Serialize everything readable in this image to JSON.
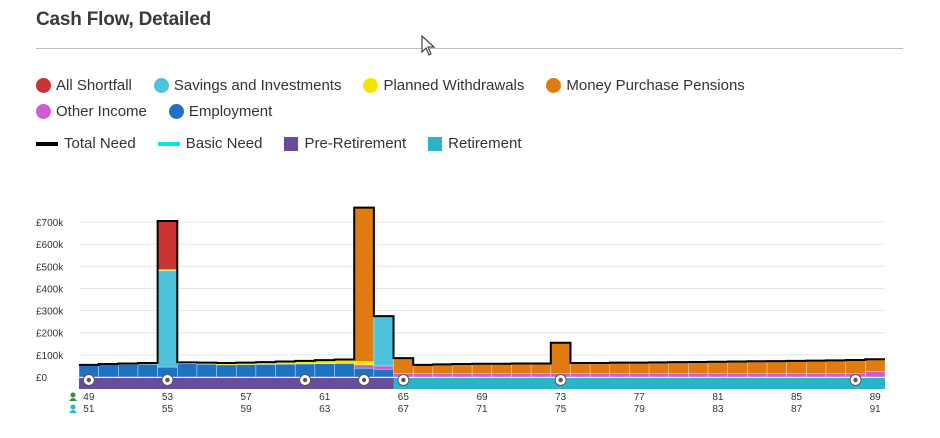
{
  "header": {
    "title": "Cash Flow, Detailed"
  },
  "legend": {
    "row1": [
      {
        "label": "All Shortfall",
        "color": "#cc3333"
      },
      {
        "label": "Savings and Investments",
        "color": "#4ec3db"
      },
      {
        "label": "Planned Withdrawals",
        "color": "#f2e600"
      },
      {
        "label": "Money Purchase Pensions",
        "color": "#e07b12"
      }
    ],
    "row2": [
      {
        "label": "Other Income",
        "color": "#cc5fcc"
      },
      {
        "label": "Employment",
        "color": "#1f72c2"
      }
    ],
    "row3": [
      {
        "label": "Total Need",
        "color": "#000000",
        "kind": "line"
      },
      {
        "label": "Basic Need",
        "color": "#00e5f0",
        "kind": "line"
      },
      {
        "label": "Pre-Retirement",
        "color": "#6a4c9c",
        "kind": "square"
      },
      {
        "label": "Retirement",
        "color": "#2ab4c8",
        "kind": "square"
      }
    ]
  },
  "chart_data": {
    "type": "bar",
    "stacked": true,
    "ylim": [
      0,
      750000
    ],
    "yticks": [
      {
        "value": 0,
        "label": "£0"
      },
      {
        "value": 100000,
        "label": "£100k"
      },
      {
        "value": 200000,
        "label": "£200k"
      },
      {
        "value": 300000,
        "label": "£300k"
      },
      {
        "value": 400000,
        "label": "£400k"
      },
      {
        "value": 500000,
        "label": "£500k"
      },
      {
        "value": 600000,
        "label": "£600k"
      },
      {
        "value": 700000,
        "label": "£700k"
      }
    ],
    "grid": true,
    "age_person1": [
      49,
      50,
      51,
      52,
      53,
      54,
      55,
      56,
      57,
      58,
      59,
      60,
      61,
      62,
      63,
      64,
      65,
      66,
      67,
      68,
      69,
      70,
      71,
      72,
      73,
      74,
      75,
      76,
      77,
      78,
      79,
      80,
      81,
      82,
      83,
      84,
      85,
      86,
      87,
      88,
      89
    ],
    "age_person2": [
      51,
      52,
      53,
      54,
      55,
      56,
      57,
      58,
      59,
      60,
      61,
      62,
      63,
      64,
      65,
      66,
      67,
      68,
      69,
      70,
      71,
      72,
      73,
      74,
      75,
      76,
      77,
      78,
      79,
      80,
      81,
      82,
      83,
      84,
      85,
      86,
      87,
      88,
      89,
      90,
      91
    ],
    "tick_labels_person1": [
      "49",
      "53",
      "57",
      "61",
      "65",
      "69",
      "73",
      "77",
      "81",
      "85",
      "89"
    ],
    "tick_labels_person2": [
      "51",
      "55",
      "59",
      "63",
      "67",
      "71",
      "75",
      "79",
      "83",
      "87",
      "91"
    ],
    "series": [
      {
        "name": "Employment",
        "color": "#1f72c2",
        "values": [
          55000,
          56000,
          57000,
          58000,
          45000,
          60000,
          58000,
          55000,
          56000,
          57000,
          58000,
          59000,
          60000,
          61000,
          40000,
          35000,
          0,
          0,
          0,
          0,
          0,
          0,
          0,
          0,
          0,
          0,
          0,
          0,
          0,
          0,
          0,
          0,
          0,
          0,
          0,
          0,
          0,
          0,
          0,
          0,
          0
        ]
      },
      {
        "name": "Other Income",
        "color": "#cc5fcc",
        "values": [
          0,
          0,
          0,
          0,
          0,
          0,
          0,
          0,
          0,
          0,
          0,
          0,
          0,
          0,
          15000,
          15000,
          15000,
          15000,
          15000,
          15000,
          15000,
          15000,
          15000,
          15000,
          15000,
          15000,
          15000,
          15000,
          15000,
          15000,
          15000,
          15000,
          15000,
          15000,
          15000,
          15000,
          15000,
          15000,
          15000,
          15000,
          25000
        ]
      },
      {
        "name": "Savings and Investments",
        "color": "#4ec3db",
        "values": [
          0,
          0,
          0,
          0,
          435000,
          0,
          0,
          0,
          0,
          0,
          0,
          0,
          0,
          0,
          0,
          225000,
          0,
          0,
          0,
          0,
          0,
          0,
          0,
          0,
          0,
          0,
          0,
          0,
          0,
          0,
          0,
          0,
          0,
          0,
          0,
          0,
          0,
          0,
          0,
          0,
          0
        ]
      },
      {
        "name": "Planned Withdrawals",
        "color": "#f2e600",
        "values": [
          0,
          3000,
          4000,
          5000,
          5000,
          6000,
          7000,
          8000,
          9000,
          10000,
          12000,
          14000,
          16000,
          18000,
          15000,
          0,
          0,
          0,
          0,
          0,
          0,
          0,
          0,
          0,
          0,
          0,
          0,
          0,
          0,
          0,
          0,
          0,
          0,
          0,
          0,
          0,
          0,
          0,
          0,
          0,
          0
        ]
      },
      {
        "name": "Money Purchase Pensions",
        "color": "#e07b12",
        "values": [
          0,
          0,
          0,
          0,
          0,
          0,
          0,
          0,
          0,
          0,
          0,
          0,
          0,
          0,
          695000,
          0,
          70000,
          40000,
          42000,
          44000,
          45000,
          45000,
          46000,
          46000,
          140000,
          48000,
          48000,
          50000,
          50000,
          51000,
          52000,
          53000,
          54000,
          55000,
          56000,
          57000,
          58000,
          59000,
          60000,
          62000,
          55000
        ]
      },
      {
        "name": "All Shortfall",
        "color": "#cc3333",
        "values": [
          0,
          0,
          0,
          0,
          220000,
          0,
          0,
          0,
          0,
          0,
          0,
          0,
          0,
          0,
          0,
          0,
          0,
          0,
          0,
          0,
          0,
          0,
          0,
          0,
          0,
          0,
          0,
          0,
          0,
          0,
          0,
          0,
          0,
          0,
          0,
          0,
          0,
          0,
          0,
          0,
          0
        ]
      }
    ],
    "total_need": [
      55000,
      59000,
      61000,
      63000,
      705000,
      66000,
      65000,
      63000,
      65000,
      67000,
      70000,
      73000,
      76000,
      79000,
      765000,
      275000,
      85000,
      55000,
      57000,
      59000,
      60000,
      60000,
      61000,
      61000,
      155000,
      63000,
      63000,
      65000,
      65000,
      66000,
      67000,
      68000,
      69000,
      70000,
      71000,
      72000,
      73000,
      74000,
      75000,
      77000,
      80000
    ],
    "phases": [
      {
        "name": "Pre-Retirement",
        "color": "#6a4c9c",
        "start_age": 49,
        "end_age": 64
      },
      {
        "name": "Retirement",
        "color": "#2ab4c8",
        "start_age": 65,
        "end_age": 89
      }
    ],
    "markers": [
      {
        "age": 49,
        "icon": "play-icon"
      },
      {
        "age": 53,
        "icon": "calendar-icon"
      },
      {
        "age": 60,
        "icon": "calendar-icon"
      },
      {
        "age": 63,
        "icon": "search-icon"
      },
      {
        "age": 65,
        "icon": "retire-icon"
      },
      {
        "age": 73,
        "icon": "calendar-icon"
      },
      {
        "age": 88,
        "icon": "person-icon"
      }
    ]
  }
}
